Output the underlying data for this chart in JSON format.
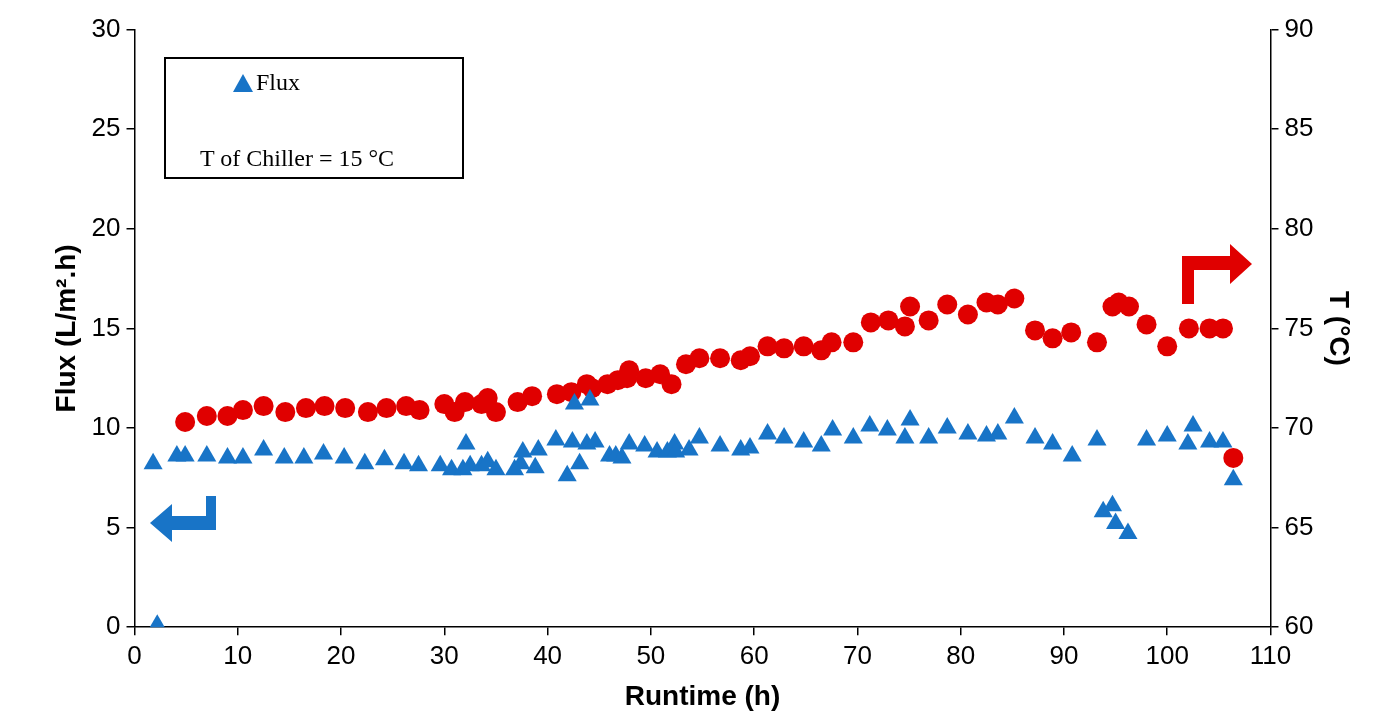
{
  "chart_data": {
    "type": "scatter",
    "xlabel": "Runtime (h)",
    "ylabel": "Flux (L/m².h)",
    "y2label": "T (°C)",
    "xlim": [
      0,
      110
    ],
    "xticks": [
      0,
      10,
      20,
      30,
      40,
      50,
      60,
      70,
      80,
      90,
      100,
      110
    ],
    "ylim": [
      0,
      30
    ],
    "yticks": [
      0,
      5,
      10,
      15,
      20,
      25,
      30
    ],
    "y2lim": [
      60,
      90
    ],
    "y2ticks": [
      60,
      65,
      70,
      75,
      80,
      85,
      90
    ],
    "grid": false,
    "legend": "top left",
    "annotations": [
      "T of  Chiller = 15 °C"
    ],
    "series": [
      {
        "name": "Flux",
        "color": "#1874c7",
        "marker": "triangle",
        "x": [
          2.2,
          1.8,
          4.1,
          4.9,
          7.0,
          9.0,
          10.5,
          12.5,
          14.5,
          16.4,
          18.3,
          20.3,
          22.3,
          24.2,
          26.1,
          27.5,
          29.6,
          30.7,
          32.1,
          31.8,
          32.5,
          33.6,
          34.2,
          35.0,
          36.8,
          37.4,
          37.6,
          38.8,
          39.1,
          40.8,
          41.9,
          42.6,
          44.1,
          42.4,
          43.1,
          43.8,
          44.6,
          46.0,
          46.6,
          47.2,
          47.9,
          49.4,
          50.6,
          51.6,
          52.3,
          52.4,
          53.7,
          54.7,
          56.7,
          58.7,
          59.6,
          61.3,
          62.9,
          64.8,
          66.5,
          67.6,
          69.6,
          71.2,
          72.9,
          74.6,
          75.1,
          76.9,
          78.7,
          80.7,
          82.5,
          83.6,
          85.2,
          87.2,
          88.9,
          90.8,
          93.2,
          93.8,
          94.7,
          95.0,
          96.2,
          98.0,
          100.0,
          102.0,
          102.5,
          104.1,
          105.4,
          106.4
        ],
        "values": [
          0.1,
          8.2,
          8.6,
          8.6,
          8.6,
          8.5,
          8.5,
          8.9,
          8.5,
          8.5,
          8.7,
          8.5,
          8.2,
          8.4,
          8.2,
          8.1,
          8.1,
          7.9,
          9.2,
          7.9,
          8.1,
          8.1,
          8.3,
          7.9,
          7.9,
          8.2,
          8.8,
          8.0,
          8.9,
          9.4,
          7.6,
          11.2,
          11.4,
          9.3,
          8.2,
          9.2,
          9.3,
          8.6,
          8.6,
          8.5,
          9.2,
          9.1,
          8.8,
          8.8,
          9.2,
          8.8,
          8.9,
          9.5,
          9.1,
          8.9,
          9.0,
          9.7,
          9.5,
          9.3,
          9.1,
          9.9,
          9.5,
          10.1,
          9.9,
          9.5,
          10.4,
          9.5,
          10.0,
          9.7,
          9.6,
          9.7,
          10.5,
          9.5,
          9.2,
          8.6,
          9.4,
          5.8,
          6.1,
          5.2,
          4.7,
          9.4,
          9.6,
          9.2,
          10.1,
          9.3,
          9.3,
          7.4
        ]
      },
      {
        "color": "#e00000",
        "marker": "circle",
        "axis": "y2",
        "x": [
          4.9,
          7.0,
          9.0,
          10.5,
          12.5,
          14.6,
          16.6,
          18.4,
          20.4,
          22.6,
          24.4,
          26.3,
          27.6,
          30.0,
          31.0,
          32.0,
          33.6,
          34.2,
          35.0,
          37.1,
          38.5,
          40.9,
          42.3,
          43.8,
          44.3,
          45.8,
          46.8,
          47.7,
          47.9,
          49.5,
          50.9,
          52.0,
          53.4,
          54.7,
          56.7,
          58.7,
          59.6,
          61.3,
          62.9,
          64.8,
          66.5,
          67.5,
          69.6,
          71.3,
          73.0,
          74.6,
          75.1,
          76.9,
          78.7,
          80.7,
          82.5,
          83.6,
          85.2,
          87.2,
          88.9,
          90.7,
          93.2,
          94.7,
          95.3,
          96.3,
          98.0,
          100.0,
          102.1,
          104.1,
          105.4,
          106.4
        ],
        "values": [
          70.3,
          70.6,
          70.6,
          70.9,
          71.1,
          70.8,
          71.0,
          71.1,
          71.0,
          70.8,
          71.0,
          71.1,
          70.9,
          71.2,
          70.8,
          71.3,
          71.2,
          71.5,
          70.8,
          71.3,
          71.6,
          71.7,
          71.8,
          72.2,
          72.0,
          72.2,
          72.4,
          72.5,
          72.9,
          72.5,
          72.7,
          72.2,
          73.2,
          73.5,
          73.5,
          73.4,
          73.6,
          74.1,
          74.0,
          74.1,
          73.9,
          74.3,
          74.3,
          75.3,
          75.4,
          75.1,
          76.1,
          75.4,
          76.2,
          75.7,
          76.3,
          76.2,
          76.5,
          74.9,
          74.5,
          74.8,
          74.3,
          76.1,
          76.3,
          76.1,
          75.2,
          74.1,
          75.0,
          75.0,
          75.0,
          68.5
        ]
      }
    ]
  }
}
